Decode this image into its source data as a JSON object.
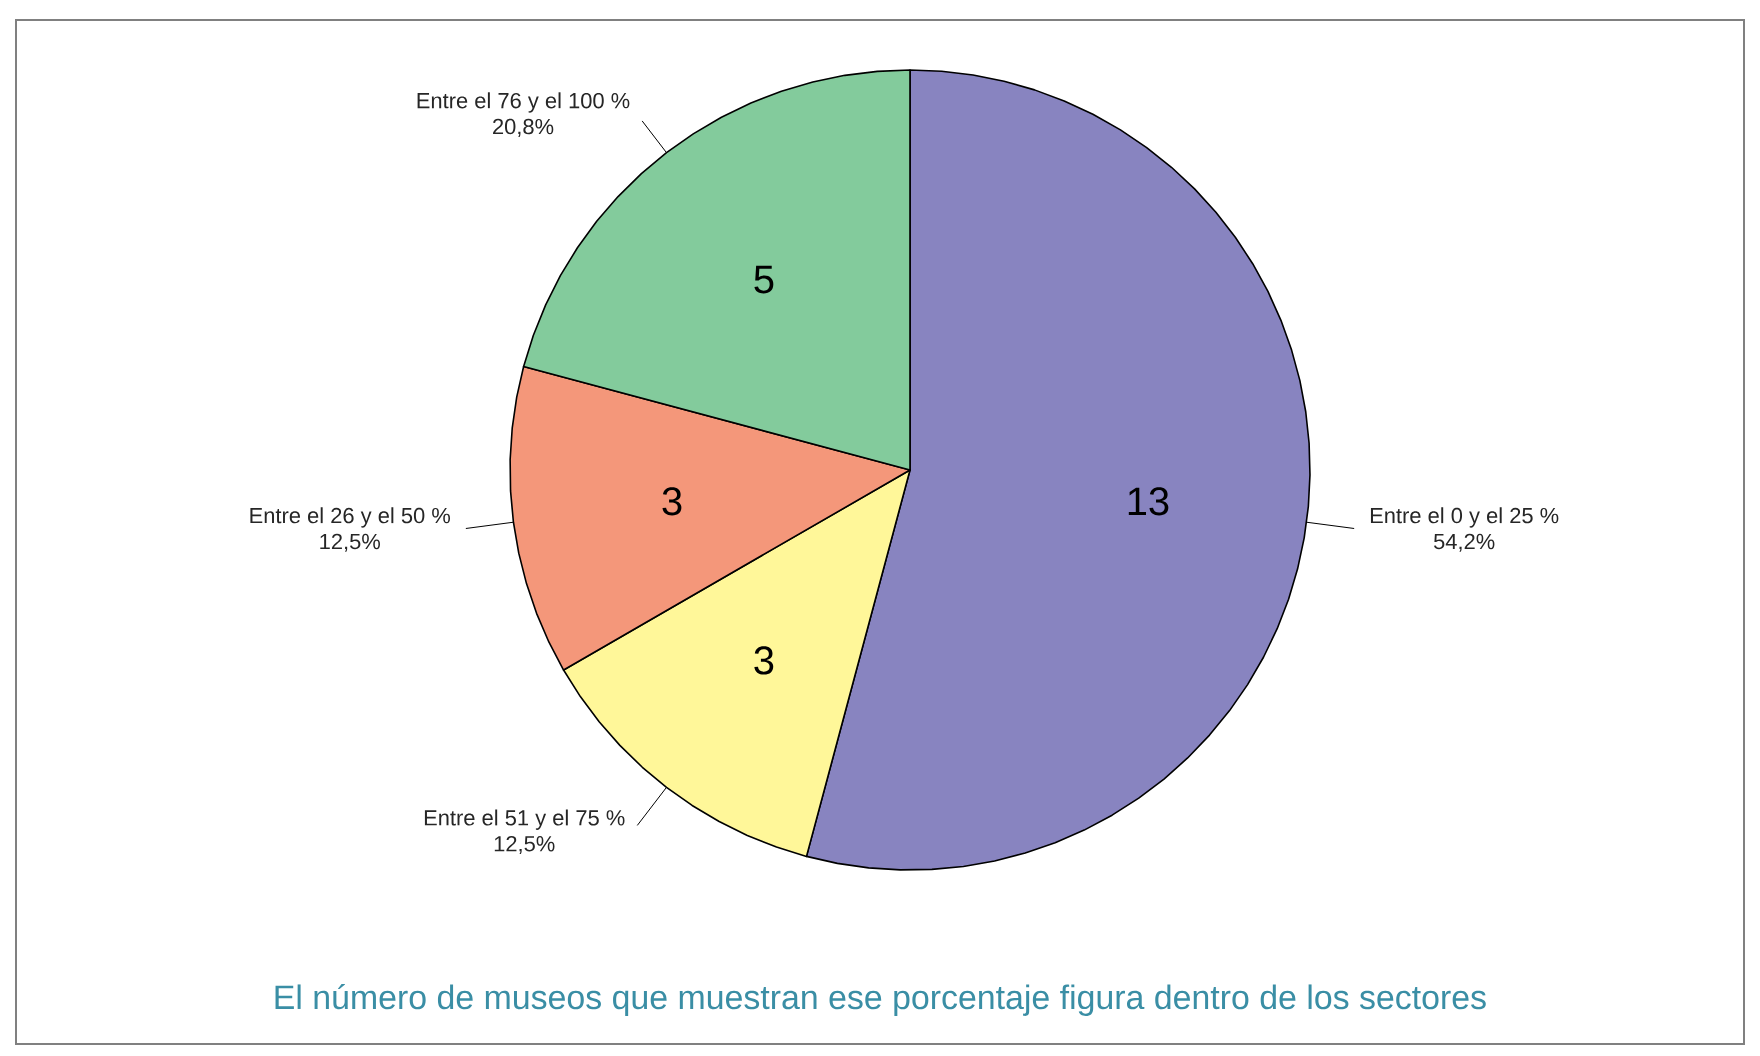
{
  "chart_data": {
    "type": "pie",
    "categories": [
      "Entre el 0 y el 25 %",
      "Entre el 51 y el 75 %",
      "Entre el 26 y el 50 %",
      "Entre el 76 y el 100 %"
    ],
    "values": [
      13,
      3,
      3,
      5
    ],
    "colors": [
      "#8884c0",
      "#fff799",
      "#f4977a",
      "#83cb9c"
    ],
    "data_labels": true,
    "annotations": [
      "54,2%",
      "12,5%",
      "12,5%",
      "20,8%",
      "El número de museos que muestran ese porcentaje figura dentro de los sectores"
    ]
  }
}
